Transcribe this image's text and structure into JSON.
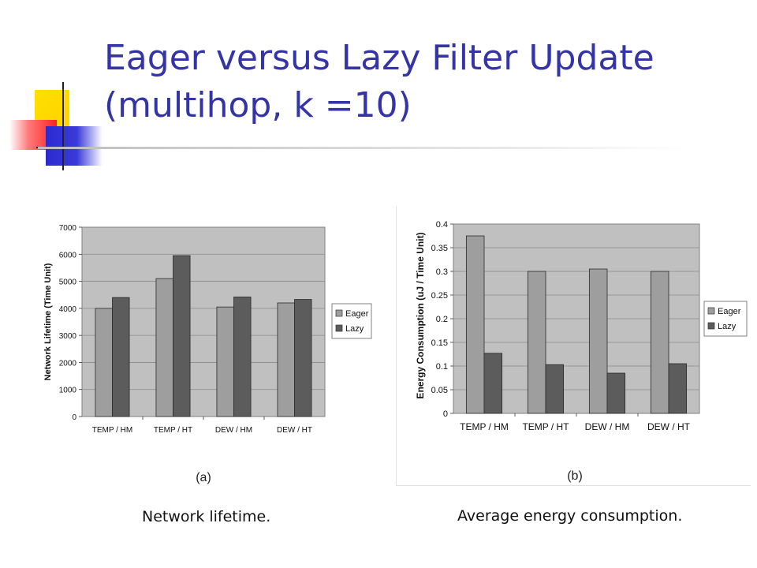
{
  "slide": {
    "title_line1": "Eager versus Lazy Filter Update",
    "title_line2": "(multihop, k =10)"
  },
  "colors": {
    "title": "#3434a6",
    "eager": "#9e9e9e",
    "lazy": "#5c5c5c",
    "plot_bg": "#c0c0c0"
  },
  "chart_data": [
    {
      "type": "bar",
      "categories": [
        "TEMP / HM",
        "TEMP / HT",
        "DEW / HM",
        "DEW / HT"
      ],
      "series": [
        {
          "name": "Eager",
          "values": [
            4000,
            5100,
            4050,
            4200
          ]
        },
        {
          "name": "Lazy",
          "values": [
            4400,
            5950,
            4420,
            4330
          ]
        }
      ],
      "ylabel": "Network Lifetime (Time Unit)",
      "ylim": [
        0,
        7000
      ],
      "yticks": [
        0,
        1000,
        2000,
        3000,
        4000,
        5000,
        6000,
        7000
      ],
      "ytick_labels": [
        "0",
        "1000",
        "2000",
        "3000",
        "4000",
        "5000",
        "6000",
        "7000"
      ],
      "grid": true,
      "legend": "right",
      "figure_label": "(a)",
      "caption": "Network lifetime."
    },
    {
      "type": "bar",
      "categories": [
        "TEMP / HM",
        "TEMP / HT",
        "DEW / HM",
        "DEW / HT"
      ],
      "series": [
        {
          "name": "Eager",
          "values": [
            0.375,
            0.3,
            0.305,
            0.3
          ]
        },
        {
          "name": "Lazy",
          "values": [
            0.127,
            0.103,
            0.085,
            0.105
          ]
        }
      ],
      "ylabel": "Energy Consumption (uJ / Time Unit)",
      "ylim": [
        0,
        0.4
      ],
      "yticks": [
        0,
        0.05,
        0.1,
        0.15,
        0.2,
        0.25,
        0.3,
        0.35,
        0.4
      ],
      "ytick_labels": [
        "0",
        "0.05",
        "0.1",
        "0.15",
        "0.2",
        "0.25",
        "0.3",
        "0.35",
        "0.4"
      ],
      "grid": true,
      "legend": "right",
      "figure_label": "(b)",
      "caption": "Average energy consumption."
    }
  ]
}
